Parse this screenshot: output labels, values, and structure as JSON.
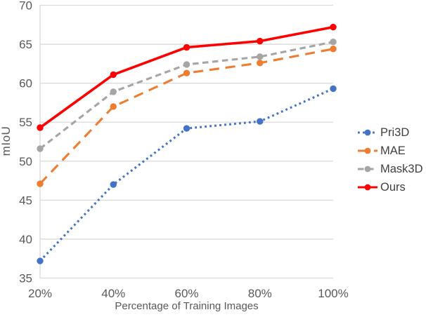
{
  "chart_data": {
    "type": "line",
    "title": "",
    "xlabel": "Percentage of Training Images",
    "ylabel": "mIoU",
    "x_tick_labels": [
      "20%",
      "40%",
      "60%",
      "80%",
      "100%"
    ],
    "y_ticks": [
      35,
      40,
      45,
      50,
      55,
      60,
      65,
      70
    ],
    "ylim": [
      35,
      70
    ],
    "grid": "horizontal",
    "legend_position": "right",
    "series": [
      {
        "name": "Pri3D",
        "color": "#4472C4",
        "style": "dotted",
        "values": [
          37.2,
          47.0,
          54.2,
          55.1,
          59.3
        ]
      },
      {
        "name": "MAE",
        "color": "#ED7D31",
        "style": "long-dash",
        "values": [
          47.1,
          57.0,
          61.3,
          62.6,
          64.4
        ]
      },
      {
        "name": "Mask3D",
        "color": "#A5A5A5",
        "style": "dash",
        "values": [
          51.6,
          58.9,
          62.4,
          63.4,
          65.3
        ]
      },
      {
        "name": "Ours",
        "color": "#FF0000",
        "style": "solid",
        "values": [
          54.3,
          61.1,
          64.6,
          65.4,
          67.2
        ]
      }
    ]
  },
  "colors": {
    "gridline": "#D9D9D9",
    "axis_line": "#D9D9D9",
    "tick_text": "#595959",
    "axis_title_text": "#595959",
    "legend_text": "#3f3f3f"
  }
}
